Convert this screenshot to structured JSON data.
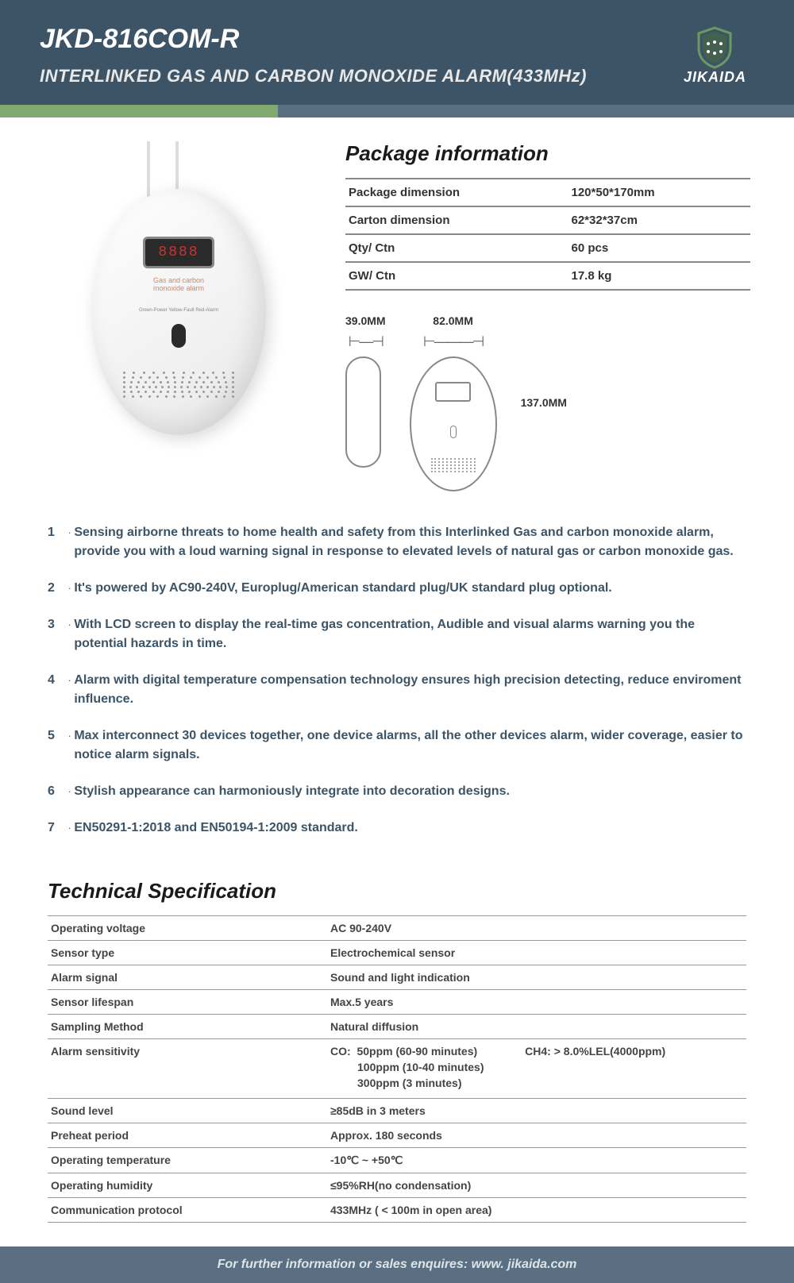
{
  "header": {
    "model": "JKD-816COM-R",
    "subtitle": "INTERLINKED GAS AND CARBON MONOXIDE ALARM(433MHz)",
    "logo_text": "JIKAIDA",
    "bg_color": "#3c5466",
    "accent_green": "#7fa96f",
    "accent_blue": "#5a7082"
  },
  "device": {
    "digits": "8888",
    "label_line1": "Gas and carbon",
    "label_line2": "monoxide alarm",
    "led_labels": "Green-Power   Yellow-Fault   Red-Alarm"
  },
  "package": {
    "title": "Package information",
    "rows": [
      {
        "label": "Package dimension",
        "value": "120*50*170mm"
      },
      {
        "label": "Carton dimension",
        "value": "62*32*37cm"
      },
      {
        "label": "Qty/ Ctn",
        "value": "60 pcs"
      },
      {
        "label": "GW/ Ctn",
        "value": "17.8 kg"
      }
    ]
  },
  "dimensions": {
    "depth": "39.0MM",
    "width": "82.0MM",
    "height": "137.0MM"
  },
  "features": [
    "Sensing airborne threats to home health and safety from this Interlinked Gas and carbon monoxide alarm, provide you with a loud warning signal in response to elevated levels of natural gas or carbon monoxide gas.",
    "It's powered by AC90-240V, Europlug/American standard plug/UK standard plug optional.",
    "With LCD screen to display the real-time gas concentration, Audible and visual alarms warning you the potential hazards in time.",
    "Alarm with digital temperature compensation technology ensures high precision detecting, reduce enviroment influence.",
    "Max interconnect 30 devices together, one device alarms, all the other devices alarm, wider coverage, easier to notice alarm signals.",
    "Stylish appearance can harmoniously integrate into decoration designs.",
    "EN50291-1:2018 and EN50194-1:2009 standard."
  ],
  "tech": {
    "title": "Technical Specification",
    "rows": [
      {
        "label": "Operating voltage",
        "value": "AC 90-240V"
      },
      {
        "label": "Sensor type",
        "value": "Electrochemical sensor"
      },
      {
        "label": "Alarm signal",
        "value": "Sound and light indication"
      },
      {
        "label": "Sensor lifespan",
        "value": "Max.5 years"
      },
      {
        "label": "Sampling Method",
        "value": "Natural diffusion"
      }
    ],
    "sensitivity": {
      "label": "Alarm sensitivity",
      "co_label": "CO:",
      "co1": "50ppm   (60-90 minutes)",
      "co2": "100ppm (10-40 minutes)",
      "co3": "300ppm (3 minutes)",
      "ch4": "CH4:  > 8.0%LEL(4000ppm)"
    },
    "rows2": [
      {
        "label": "Sound level",
        "value": "≥85dB in 3 meters"
      },
      {
        "label": "Preheat period",
        "value": "Approx. 180 seconds"
      },
      {
        "label": "Operating temperature",
        "value": "-10℃ ~ +50℃"
      },
      {
        "label": "Operating humidity",
        "value": "≤95%RH(no condensation)"
      },
      {
        "label": "Communication protocol",
        "value": "433MHz ( < 100m in open area)"
      }
    ]
  },
  "footer": "For further information or sales enquires: www. jikaida.com"
}
